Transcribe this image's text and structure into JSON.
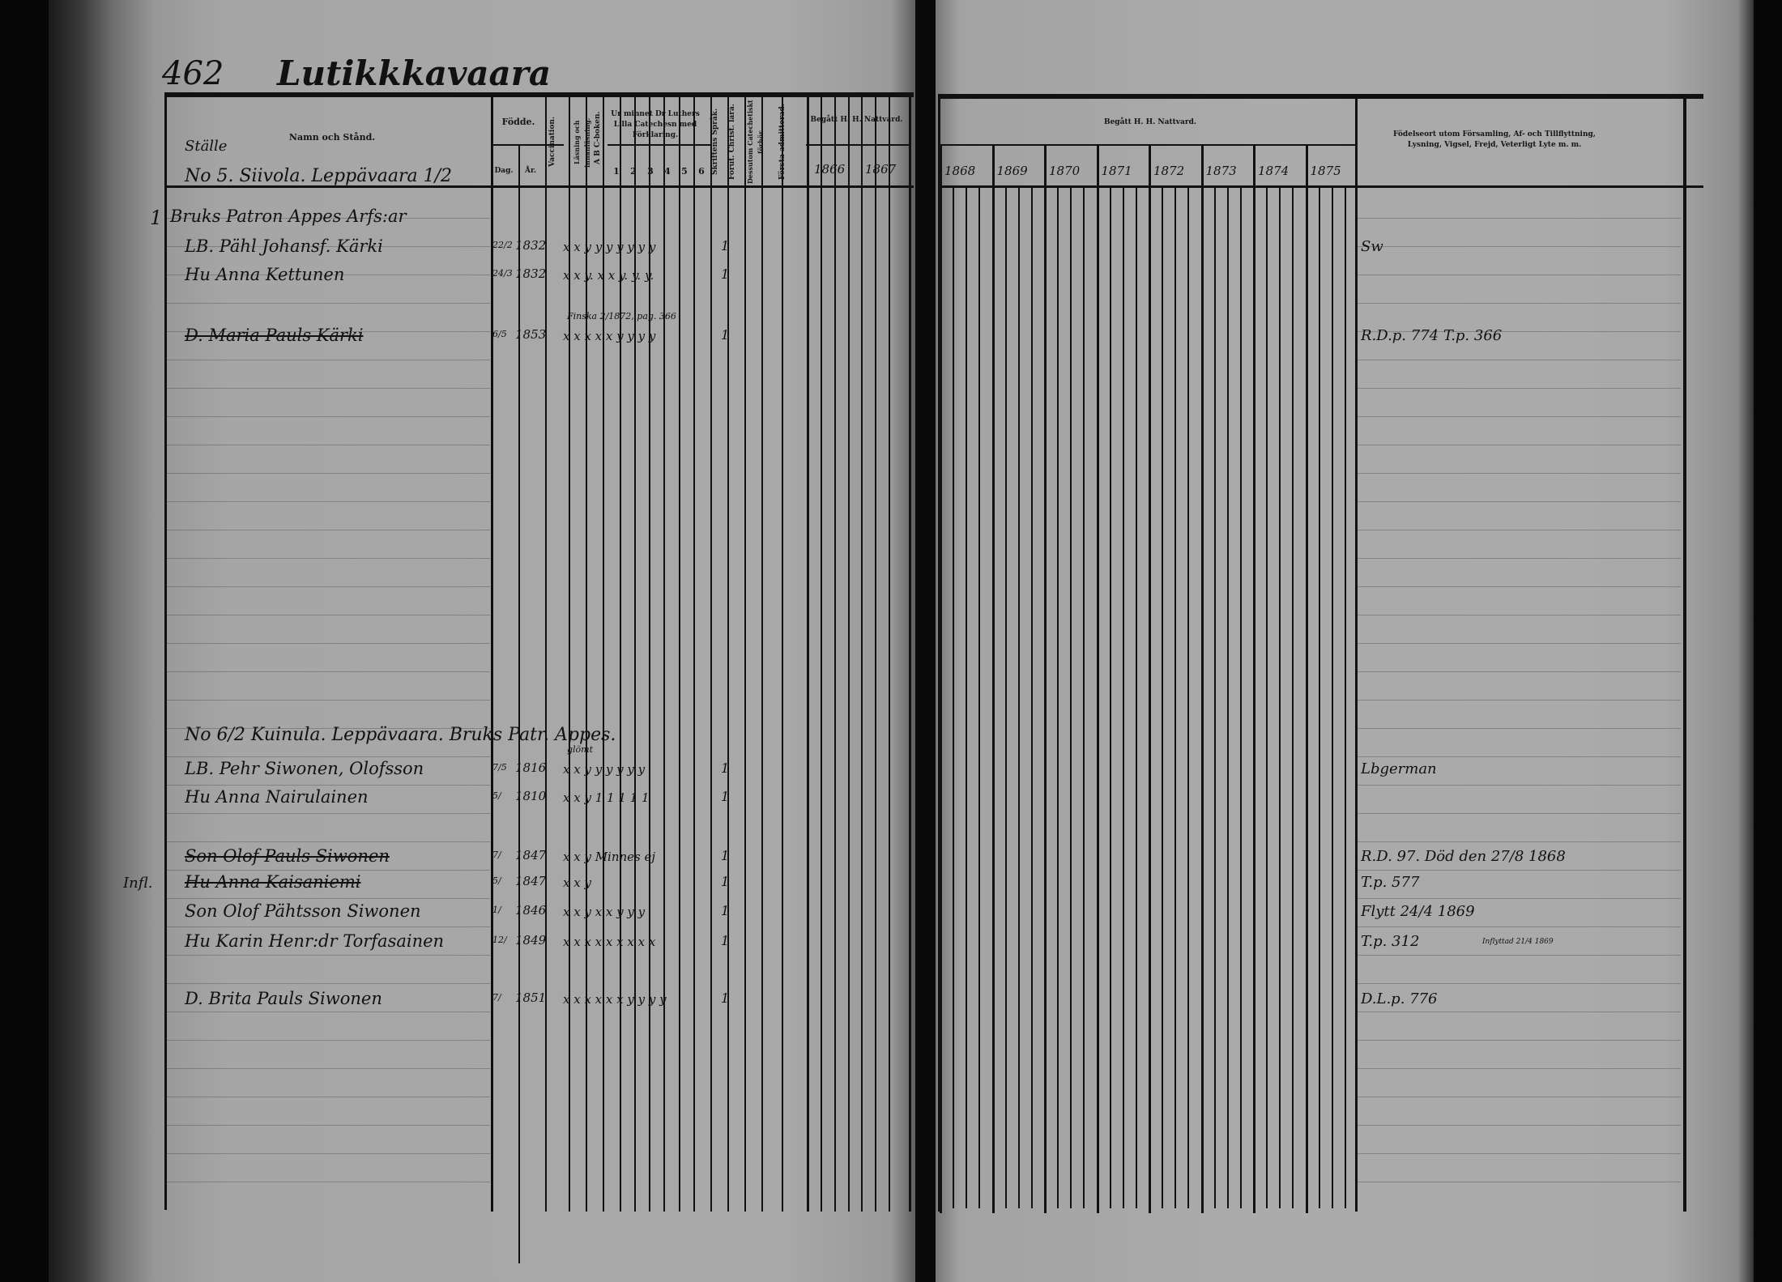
{
  "header": {
    "page_number": "462",
    "village": "Lutikkkavaara"
  },
  "left_table": {
    "col_stalle": "Ställe",
    "col_name": "Namn och Stånd.",
    "col_fodde": "Födde.",
    "col_day": "Dag.",
    "col_year": "År.",
    "col_vaccination": "Vaccination.",
    "col_reading": "Läsning och innanläsning.",
    "col_abc": "A B C-boken.",
    "col_catechism": "Ur minnet Dr Luthers Lilla Catechesn med Förklaring.",
    "catechism_parts": [
      "1",
      "2",
      "3",
      "4",
      "5",
      "6"
    ],
    "col_skriftens": "Skriftens Språk.",
    "col_christ": "Förut. Christ. lära.",
    "col_cathedral": "Dessutom Catechetiskt förhör.",
    "col_admitted": "Första admitterad.",
    "col_communion": "Begått H. H. Nattvard.",
    "years": [
      "1866",
      "1867"
    ]
  },
  "right_table": {
    "col_communion": "Begått H. H. Nattvard.",
    "years": [
      "1868",
      "1869",
      "1870",
      "1871",
      "1872",
      "1873",
      "1874",
      "1875"
    ],
    "col_notes": "Födelseort utom Församling, Af- och Tillflyttning, Lysning, Vigsel, Frejd, Veterligt Lyte m. m."
  },
  "households": [
    {
      "heading": "No 5. Siivola. Leppävaara 1/2",
      "number": "1",
      "entries": [
        {
          "name": "Bruks Patron Appes Arfs:ar",
          "birth_day": "",
          "birth_year": "",
          "marks": "",
          "communion": "",
          "note": "",
          "struck": false
        },
        {
          "name": "LB. Pähl Johansf. Kärki",
          "birth_day": "22/2",
          "birth_year": "1832",
          "marks": "x x y y y y y y y",
          "communion": "1",
          "note": "Sw",
          "struck": false
        },
        {
          "name": "Hu Anna Kettunen",
          "birth_day": "24/3",
          "birth_year": "1832",
          "marks": "x x y. x x y. y. y.",
          "communion": "1",
          "note": "",
          "struck": false
        },
        {
          "name": "D. Maria Pauls Kärki",
          "birth_day": "6/5",
          "birth_year": "1853",
          "marks": "x x x  x x y y y y",
          "communion": "1",
          "note": "R.D.p. 774 T.p. 366",
          "above": "Finska 2/1872, pag. 366",
          "struck": true
        }
      ]
    },
    {
      "heading": "No 6/2 Kuinula. Leppävaara. Bruks Patr. Appes.",
      "number": "",
      "entries": [
        {
          "name": "LB. Pehr Siwonen, Olofsson",
          "birth_day": "7/5",
          "birth_year": "1816",
          "marks": "x x y y y y y y",
          "above": "glömt",
          "communion": "1",
          "note": "Lbgerman",
          "struck": false
        },
        {
          "name": "Hu Anna Nairulainen",
          "birth_day": "5/",
          "birth_year": "1810",
          "marks": "x x y 1 1 1 1 1",
          "communion": "1",
          "note": "",
          "struck": false
        },
        {
          "name": "Son Olof Pauls Siwonen",
          "birth_day": "7/",
          "birth_year": "1847",
          "marks": "x x y  Minnes ej",
          "communion": "1",
          "note": "R.D. 97. Död den 27/8 1868",
          "struck": true
        },
        {
          "name": "Hu Anna Kaisaniemi",
          "birth_day": "5/",
          "birth_year": "1847",
          "marks": "x x y",
          "communion": "1",
          "note": "T.p. 577",
          "struck": true
        },
        {
          "name": "Son Olof Pähtsson Siwonen",
          "birth_day": "1/",
          "birth_year": "1846",
          "marks": "x x y  x x y y y",
          "communion": "1",
          "note": "Flytt 24/4 1869",
          "struck": false
        },
        {
          "name": "Hu Karin Henr:dr Torfasainen",
          "birth_day": "12/",
          "birth_year": "1849",
          "marks": "x x x x x x x x x",
          "communion": "1",
          "note": "T.p. 312",
          "side_note": "Inflyttad 21/4 1869",
          "struck": false
        },
        {
          "name": "D. Brita Pauls Siwonen",
          "birth_day": "7/",
          "birth_year": "1851",
          "marks": "x x x x x x y y y y",
          "communion": "1",
          "note": "D.L.p. 776",
          "struck": false
        }
      ]
    }
  ],
  "margin_notes": {
    "left_margin": "Infl."
  }
}
